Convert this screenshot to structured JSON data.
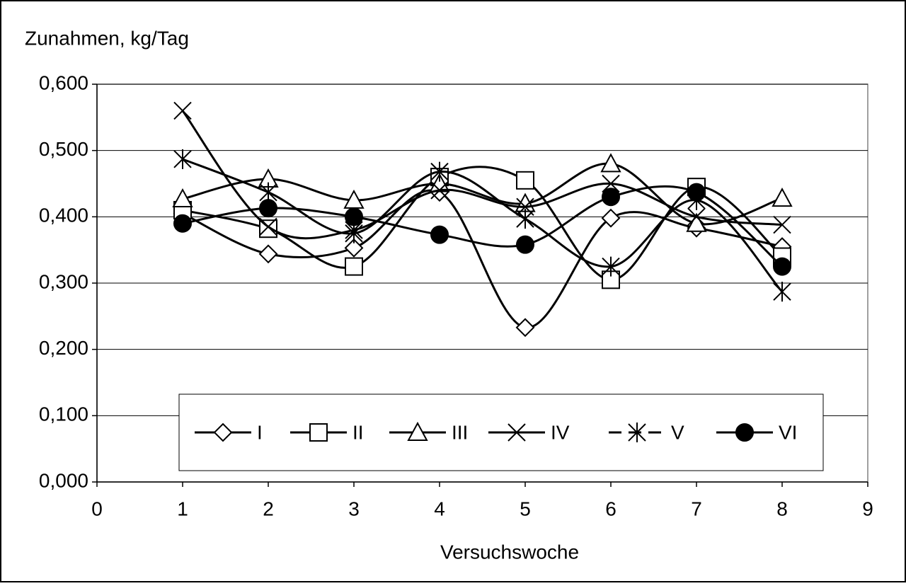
{
  "chart_data": {
    "type": "line",
    "title": "Zunahmen, kg/Tag",
    "x_label": "Versuchswoche",
    "x": [
      1,
      2,
      3,
      4,
      5,
      6,
      7,
      8
    ],
    "xlim": [
      0,
      9
    ],
    "xticks": [
      0,
      1,
      2,
      3,
      4,
      5,
      6,
      7,
      8,
      9
    ],
    "ylim": [
      0,
      0.6
    ],
    "yticks": [
      {
        "value": 0,
        "label": "0,000"
      },
      {
        "value": 0.1,
        "label": "0,100"
      },
      {
        "value": 0.2,
        "label": "0,200"
      },
      {
        "value": 0.3,
        "label": "0,300"
      },
      {
        "value": 0.4,
        "label": "0,400"
      },
      {
        "value": 0.5,
        "label": "0,500"
      },
      {
        "value": 0.6,
        "label": "0,600"
      }
    ],
    "grid": true,
    "smooth": true,
    "legend": "bottom",
    "series": [
      {
        "name": "I",
        "color": "#000000",
        "marker": "diamond",
        "values": [
          0.405,
          0.344,
          0.353,
          0.437,
          0.233,
          0.398,
          0.383,
          0.355
        ]
      },
      {
        "name": "II",
        "color": "#000000",
        "marker": "square",
        "values": [
          0.41,
          0.382,
          0.325,
          0.46,
          0.455,
          0.305,
          0.445,
          0.34
        ]
      },
      {
        "name": "III",
        "color": "#000000",
        "marker": "triangle",
        "values": [
          0.427,
          0.457,
          0.425,
          0.45,
          0.42,
          0.48,
          0.39,
          0.428
        ]
      },
      {
        "name": "IV",
        "color": "#000000",
        "marker": "x",
        "values": [
          0.56,
          0.385,
          0.38,
          0.44,
          0.415,
          0.45,
          0.4,
          0.388
        ]
      },
      {
        "name": "V",
        "color": "#000000",
        "marker": "star",
        "values": [
          0.487,
          0.437,
          0.375,
          0.468,
          0.397,
          0.325,
          0.425,
          0.287
        ]
      },
      {
        "name": "VI",
        "color": "#000000",
        "marker": "circle",
        "values": [
          0.39,
          0.413,
          0.4,
          0.373,
          0.358,
          0.43,
          0.437,
          0.325
        ]
      }
    ]
  }
}
